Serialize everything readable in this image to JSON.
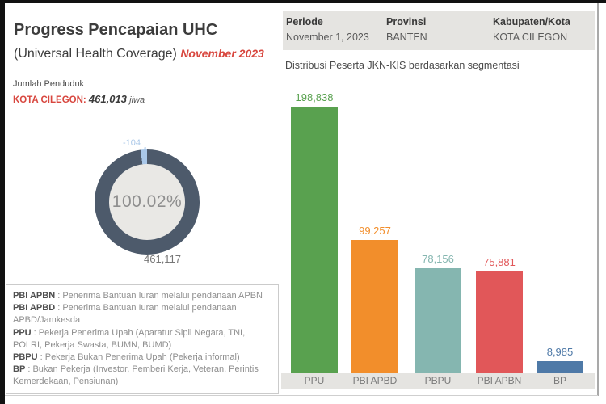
{
  "page": {
    "title": "Progress Pencapaian UHC",
    "subtitle": "(Universal Health Coverage)",
    "period_label": "November 2023"
  },
  "population": {
    "label": "Jumlah Penduduk",
    "city": "KOTA CILEGON:",
    "value": "461,013",
    "unit": "jiwa"
  },
  "header": {
    "fields": [
      {
        "label": "Periode",
        "value": "November 1, 2023"
      },
      {
        "label": "Provinsi",
        "value": "BANTEN"
      },
      {
        "label": "Kabupaten/Kota",
        "value": "KOTA CILEGON"
      }
    ]
  },
  "donut": {
    "percent": "100.02%",
    "overflow_label": "-104",
    "total_label": "461,117",
    "ring_color": "#4d5a6b",
    "overflow_color": "#a9c7e8",
    "hole_color": "#e9e8e5"
  },
  "chart_data": {
    "type": "bar",
    "title": "Distribusi Peserta JKN-KIS berdasarkan segmentasi",
    "categories": [
      "PPU",
      "PBI APBD",
      "PBPU",
      "PBI APBN",
      "BP"
    ],
    "values": [
      198838,
      99257,
      78156,
      75881,
      8985
    ],
    "value_labels": [
      "198,838",
      "99,257",
      "78,156",
      "75,881",
      "8,985"
    ],
    "colors": [
      "#59a14f",
      "#f28e2b",
      "#85b6b0",
      "#e15759",
      "#4e79a7"
    ],
    "xlabel": "",
    "ylabel": "",
    "ylim": [
      0,
      200000
    ],
    "grid": false,
    "legend_position": "none",
    "donut_companion": {
      "percent": 100.02,
      "total": 461117,
      "overflow": -104
    }
  },
  "legend": {
    "items": [
      {
        "term": "PBI APBN",
        "desc": "Penerima Bantuan Iuran melalui pendanaan APBN"
      },
      {
        "term": "PBI APBD",
        "desc": "Penerima Bantuan Iuran melalui pendanaan APBD/Jamkesda"
      },
      {
        "term": "PPU",
        "desc": "Pekerja Penerima Upah (Aparatur Sipil Negara, TNI, POLRI, Pekerja Swasta, BUMN, BUMD)"
      },
      {
        "term": "PBPU",
        "desc": "Pekerja Bukan Penerima Upah (Pekerja informal)"
      },
      {
        "term": "BP",
        "desc": "Bukan Pekerja (Investor, Pemberi Kerja, Veteran, Perintis Kemerdekaan, Pensiunan)"
      }
    ]
  }
}
